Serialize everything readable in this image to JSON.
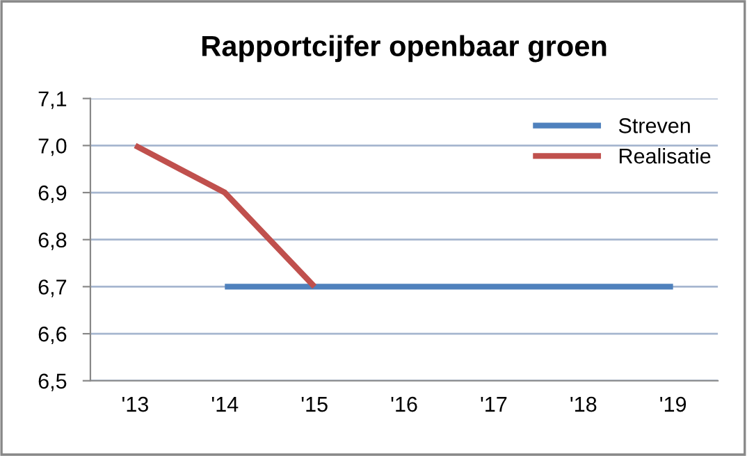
{
  "chart_data": {
    "type": "line",
    "title": "Rapportcijfer openbaar groen",
    "categories": [
      "'13",
      "'14",
      "'15",
      "'16",
      "'17",
      "'18",
      "'19"
    ],
    "series": [
      {
        "name": "Streven",
        "color": "#4f81bd",
        "values": [
          null,
          6.7,
          6.7,
          6.7,
          6.7,
          6.7,
          6.7
        ]
      },
      {
        "name": "Realisatie",
        "color": "#c0504d",
        "values": [
          7.0,
          6.9,
          6.7,
          null,
          null,
          null,
          null
        ]
      }
    ],
    "ylim": [
      6.5,
      7.1
    ],
    "yticks": [
      {
        "value": 6.5,
        "label": "6,5"
      },
      {
        "value": 6.6,
        "label": "6,6"
      },
      {
        "value": 6.7,
        "label": "6,7"
      },
      {
        "value": 6.8,
        "label": "6,8"
      },
      {
        "value": 6.9,
        "label": "6,9"
      },
      {
        "value": 7.0,
        "label": "7,0"
      },
      {
        "value": 7.1,
        "label": "7,1"
      }
    ],
    "grid": "y",
    "legend": "top right",
    "marker": "none",
    "line_style": "solid"
  }
}
